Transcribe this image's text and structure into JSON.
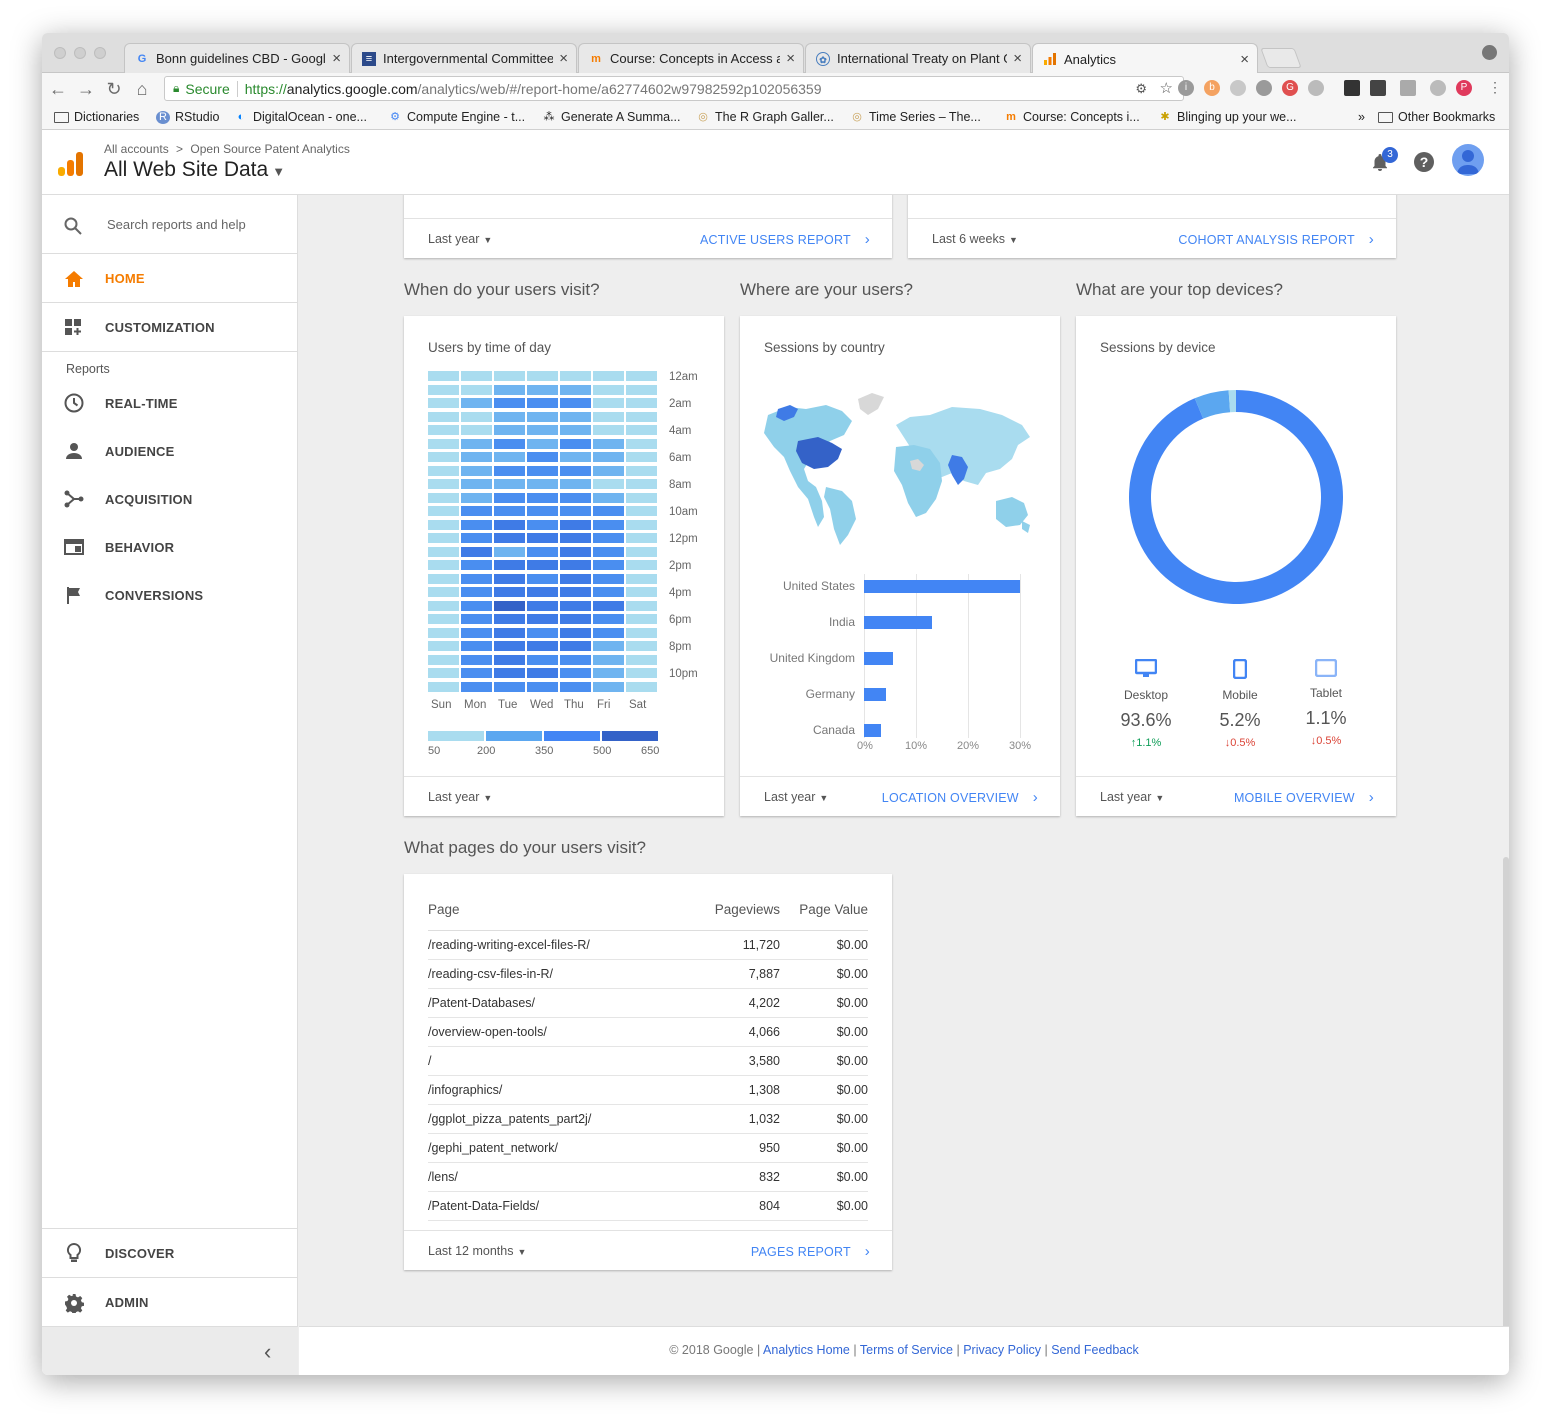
{
  "browser": {
    "tabs": [
      {
        "title": "Bonn guidelines CBD - Google",
        "icon": "google-icon"
      },
      {
        "title": "Intergovernmental Committee",
        "icon": "un-icon"
      },
      {
        "title": "Course: Concepts in Access an",
        "icon": "moodle-icon"
      },
      {
        "title": "International Treaty on Plant G",
        "icon": "fao-icon"
      },
      {
        "title": "Analytics",
        "icon": "analytics-icon"
      }
    ],
    "secure_label": "Secure",
    "url_scheme": "https://",
    "url_host": "analytics.google.com",
    "url_path": "/analytics/web/#/report-home/a62774602w97982592p102056359",
    "bookmarks": [
      "Dictionaries",
      "RStudio",
      "DigitalOcean - one...",
      "Compute Engine - t...",
      "Generate A Summa...",
      "The R Graph Galler...",
      "Time Series – The...",
      "Course: Concepts i...",
      "Blinging up your we..."
    ],
    "other_bookmarks": "Other Bookmarks",
    "overflow": "»"
  },
  "header": {
    "breadcrumb_root": "All accounts",
    "breadcrumb_sep": ">",
    "breadcrumb_account": "Open Source Patent Analytics",
    "property_title": "All Web Site Data",
    "notification_count": "3",
    "help_icon": "?"
  },
  "sidebar": {
    "search_placeholder": "Search reports and help",
    "home": "HOME",
    "customization": "CUSTOMIZATION",
    "reports_label": "Reports",
    "realtime": "REAL-TIME",
    "audience": "AUDIENCE",
    "acquisition": "ACQUISITION",
    "behavior": "BEHAVIOR",
    "conversions": "CONVERSIONS",
    "discover": "DISCOVER",
    "admin": "ADMIN",
    "collapse": "‹"
  },
  "top_cards": {
    "left_range": "Last year",
    "left_link": "ACTIVE USERS REPORT",
    "right_range": "Last 6 weeks",
    "right_link": "COHORT ANALYSIS REPORT"
  },
  "time_card": {
    "section_title": "When do your users visit?",
    "title": "Users by time of day",
    "hour_labels": [
      "12am",
      "2am",
      "4am",
      "6am",
      "8am",
      "10am",
      "12pm",
      "2pm",
      "4pm",
      "6pm",
      "8pm",
      "10pm"
    ],
    "day_labels": [
      "Sun",
      "Mon",
      "Tue",
      "Wed",
      "Thu",
      "Fri",
      "Sat"
    ],
    "legend_labels": [
      "50",
      "200",
      "350",
      "500",
      "650"
    ],
    "range": "Last year"
  },
  "country_card": {
    "section_title": "Where are your users?",
    "title": "Sessions by country",
    "range": "Last year",
    "link": "LOCATION OVERVIEW"
  },
  "device_card": {
    "section_title": "What are your top devices?",
    "title": "Sessions by device",
    "devices": [
      {
        "name": "Desktop",
        "pct": "93.6%",
        "delta": "↑1.1%",
        "icon": "desktop-icon"
      },
      {
        "name": "Mobile",
        "pct": "5.2%",
        "delta": "↓0.5%",
        "icon": "mobile-icon"
      },
      {
        "name": "Tablet",
        "pct": "1.1%",
        "delta": "↓0.5%",
        "icon": "tablet-icon"
      }
    ],
    "range": "Last year",
    "link": "MOBILE OVERVIEW"
  },
  "pages_card": {
    "section_title": "What pages do your users visit?",
    "col_page": "Page",
    "col_views": "Pageviews",
    "col_value": "Page Value",
    "rows": [
      {
        "page": "/reading-writing-excel-files-R/",
        "views": "11,720",
        "value": "$0.00"
      },
      {
        "page": "/reading-csv-files-in-R/",
        "views": "7,887",
        "value": "$0.00"
      },
      {
        "page": "/Patent-Databases/",
        "views": "4,202",
        "value": "$0.00"
      },
      {
        "page": "/overview-open-tools/",
        "views": "4,066",
        "value": "$0.00"
      },
      {
        "page": "/",
        "views": "3,580",
        "value": "$0.00"
      },
      {
        "page": "/infographics/",
        "views": "1,308",
        "value": "$0.00"
      },
      {
        "page": "/ggplot_pizza_patents_part2j/",
        "views": "1,032",
        "value": "$0.00"
      },
      {
        "page": "/gephi_patent_network/",
        "views": "950",
        "value": "$0.00"
      },
      {
        "page": "/lens/",
        "views": "832",
        "value": "$0.00"
      },
      {
        "page": "/Patent-Data-Fields/",
        "views": "804",
        "value": "$0.00"
      }
    ],
    "range": "Last 12 months",
    "link": "PAGES REPORT"
  },
  "footer": {
    "copyright": "© 2018 Google",
    "links": [
      "Analytics Home",
      "Terms of Service",
      "Privacy Policy",
      "Send Feedback"
    ],
    "sep": "|"
  },
  "colors": {
    "accent": "#f57c00",
    "link": "#4285f4",
    "heat": [
      "#a9dcef",
      "#6fb4f0",
      "#4a8ef0",
      "#3f7be6",
      "#3462c8"
    ],
    "up": "#0f9d58",
    "down": "#db4437"
  },
  "chart_data": [
    {
      "type": "heatmap",
      "title": "Users by time of day",
      "x_categories": [
        "Sun",
        "Mon",
        "Tue",
        "Wed",
        "Thu",
        "Fri",
        "Sat"
      ],
      "y_tick_labels": [
        "12am",
        "2am",
        "4am",
        "6am",
        "8am",
        "10am",
        "12pm",
        "2pm",
        "4pm",
        "6pm",
        "8pm",
        "10pm"
      ],
      "legend": [
        50,
        200,
        350,
        500,
        650
      ],
      "levels": [
        [
          0,
          0,
          0,
          0,
          0,
          0,
          0
        ],
        [
          0,
          0,
          1,
          1,
          1,
          0,
          0
        ],
        [
          0,
          1,
          2,
          2,
          2,
          0,
          0
        ],
        [
          0,
          0,
          1,
          1,
          1,
          0,
          0
        ],
        [
          0,
          0,
          1,
          1,
          1,
          0,
          0
        ],
        [
          0,
          1,
          2,
          1,
          2,
          1,
          0
        ],
        [
          0,
          1,
          1,
          2,
          1,
          1,
          0
        ],
        [
          0,
          1,
          2,
          2,
          2,
          1,
          0
        ],
        [
          0,
          1,
          1,
          1,
          1,
          0,
          0
        ],
        [
          0,
          1,
          2,
          2,
          2,
          1,
          0
        ],
        [
          0,
          2,
          2,
          2,
          2,
          2,
          0
        ],
        [
          0,
          2,
          3,
          2,
          3,
          2,
          0
        ],
        [
          0,
          2,
          3,
          3,
          3,
          2,
          0
        ],
        [
          0,
          3,
          1,
          2,
          3,
          2,
          0
        ],
        [
          0,
          2,
          3,
          3,
          3,
          2,
          0
        ],
        [
          0,
          2,
          3,
          2,
          3,
          2,
          0
        ],
        [
          0,
          2,
          3,
          3,
          3,
          2,
          0
        ],
        [
          0,
          2,
          4,
          3,
          3,
          3,
          0
        ],
        [
          0,
          2,
          3,
          3,
          3,
          2,
          0
        ],
        [
          0,
          2,
          3,
          2,
          3,
          2,
          0
        ],
        [
          0,
          2,
          3,
          3,
          3,
          1,
          0
        ],
        [
          0,
          2,
          3,
          2,
          2,
          1,
          0
        ],
        [
          0,
          2,
          3,
          3,
          2,
          1,
          0
        ],
        [
          0,
          2,
          2,
          2,
          2,
          1,
          0
        ]
      ]
    },
    {
      "type": "bar",
      "title": "Sessions by country",
      "categories": [
        "United States",
        "India",
        "United Kingdom",
        "Germany",
        "Canada"
      ],
      "values": [
        30,
        13,
        5.5,
        4.2,
        3.3
      ],
      "x_tick_labels": [
        "0%",
        "10%",
        "20%",
        "30%"
      ],
      "xlim": [
        0,
        30
      ]
    },
    {
      "type": "pie",
      "title": "Sessions by device",
      "categories": [
        "Desktop",
        "Mobile",
        "Tablet"
      ],
      "values": [
        93.6,
        5.2,
        1.1
      ]
    }
  ]
}
